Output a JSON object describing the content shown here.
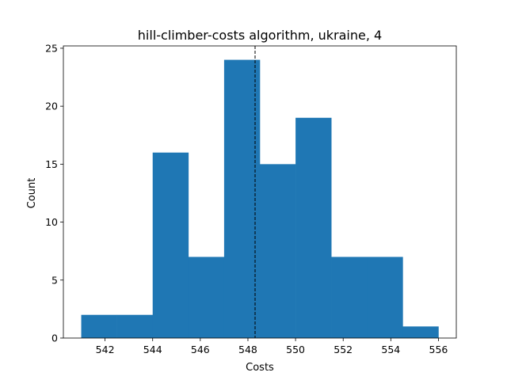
{
  "chart_data": {
    "type": "bar",
    "title": "hill-climber-costs algorithm, ukraine, 4",
    "xlabel": "Costs",
    "ylabel": "Count",
    "xlim": [
      540.25,
      556.75
    ],
    "ylim": [
      0,
      25.2
    ],
    "xticks": [
      542,
      544,
      546,
      548,
      550,
      552,
      554,
      556
    ],
    "yticks": [
      0,
      5,
      10,
      15,
      20,
      25
    ],
    "bins": [
      {
        "x0": 541.0,
        "x1": 542.5,
        "count": 2
      },
      {
        "x0": 542.5,
        "x1": 544.0,
        "count": 2
      },
      {
        "x0": 544.0,
        "x1": 545.5,
        "count": 16
      },
      {
        "x0": 545.5,
        "x1": 547.0,
        "count": 7
      },
      {
        "x0": 547.0,
        "x1": 548.5,
        "count": 24
      },
      {
        "x0": 548.5,
        "x1": 550.0,
        "count": 15
      },
      {
        "x0": 550.0,
        "x1": 551.5,
        "count": 19
      },
      {
        "x0": 551.5,
        "x1": 553.0,
        "count": 7
      },
      {
        "x0": 553.0,
        "x1": 554.5,
        "count": 7
      },
      {
        "x0": 554.5,
        "x1": 556.0,
        "count": 1
      }
    ],
    "mean_line": 548.3,
    "bar_color": "#1f77b4",
    "mean_line_color": "#000000",
    "grid": false,
    "legend": "none"
  }
}
